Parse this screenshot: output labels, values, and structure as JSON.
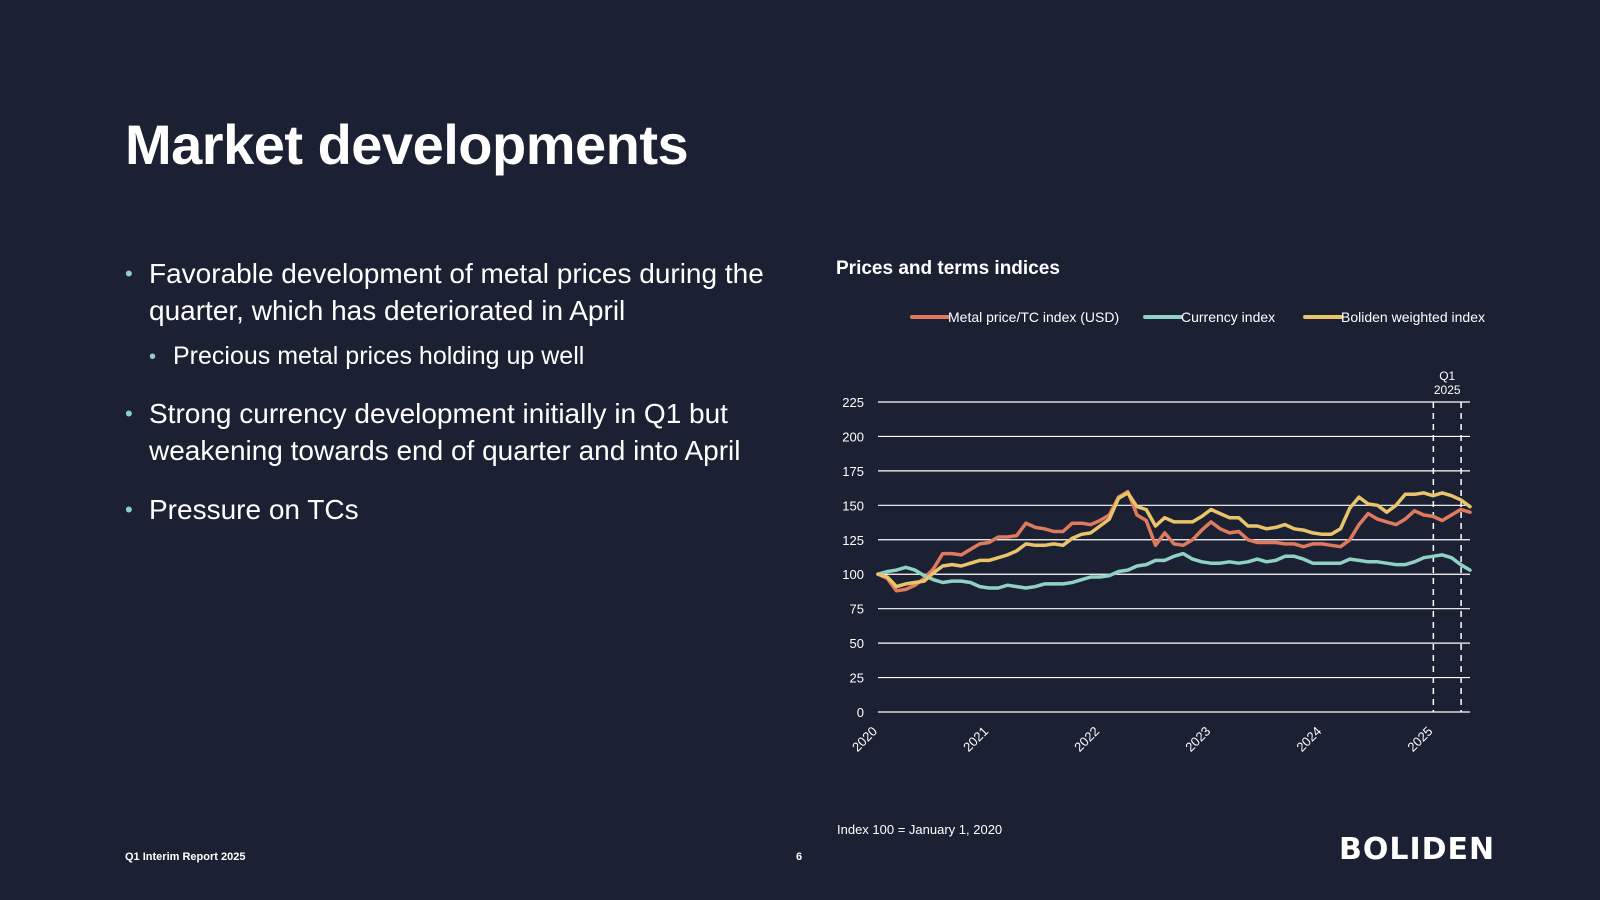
{
  "slide": {
    "title": "Market developments",
    "bullets": [
      {
        "text": "Favorable development of metal prices during the quarter, which has deteriorated in April",
        "sub": "Precious metal prices holding up well"
      },
      {
        "text": "Strong currency development initially in Q1 but weakening towards end of quarter and into April"
      },
      {
        "text": "Pressure on TCs"
      }
    ],
    "bullet_glyph": "•",
    "chart_title": "Prices and terms indices",
    "note": "Index 100 = January 1, 2020",
    "footer_report": "Q1 Interim Report 2025",
    "page_number": "6",
    "logo_text": "BOLIDEN"
  },
  "chart_data": {
    "type": "line",
    "title": "Prices and terms indices",
    "x_ticks": [
      "2020",
      "2021",
      "2022",
      "2023",
      "2024",
      "2025"
    ],
    "x_start": 2020,
    "x_end": 2025.33,
    "ylim": [
      0,
      225
    ],
    "y_ticks": [
      0,
      25,
      50,
      75,
      100,
      125,
      150,
      175,
      200,
      225
    ],
    "grid": true,
    "legend_position": "top",
    "annotation": {
      "label_line1": "Q1",
      "label_line2": "2025",
      "start": 2025.0,
      "end": 2025.25
    },
    "footnote": "Index 100 = January 1, 2020",
    "series": [
      {
        "name": "Metal price/TC index (USD)",
        "color": "#df7a5f",
        "values": [
          100,
          97,
          88,
          89,
          92,
          97,
          104,
          115,
          115,
          114,
          118,
          122,
          123,
          127,
          127,
          128,
          137,
          134,
          133,
          131,
          131,
          137,
          137,
          136,
          139,
          143,
          156,
          160,
          143,
          139,
          121,
          130,
          122,
          121,
          125,
          132,
          138,
          133,
          130,
          131,
          125,
          123,
          123,
          123,
          122,
          122,
          120,
          122,
          122,
          121,
          120,
          125,
          136,
          144,
          140,
          138,
          136,
          140,
          146,
          143,
          142,
          139,
          143,
          147,
          145
        ]
      },
      {
        "name": "Currency index",
        "color": "#8fd1c2",
        "values": [
          100,
          102,
          103,
          105,
          103,
          99,
          96,
          94,
          95,
          95,
          94,
          91,
          90,
          90,
          92,
          91,
          90,
          91,
          93,
          93,
          93,
          94,
          96,
          98,
          98,
          99,
          102,
          103,
          106,
          107,
          110,
          110,
          113,
          115,
          111,
          109,
          108,
          108,
          109,
          108,
          109,
          111,
          109,
          110,
          113,
          113,
          111,
          108,
          108,
          108,
          108,
          111,
          110,
          109,
          109,
          108,
          107,
          107,
          109,
          112,
          113,
          114,
          112,
          107,
          103
        ]
      },
      {
        "name": "Boliden weighted index",
        "color": "#e9c46a",
        "values": [
          100,
          98,
          91,
          93,
          94,
          95,
          101,
          106,
          107,
          106,
          108,
          110,
          110,
          112,
          114,
          117,
          122,
          121,
          121,
          122,
          121,
          126,
          129,
          130,
          135,
          140,
          155,
          159,
          149,
          147,
          135,
          141,
          138,
          138,
          138,
          142,
          147,
          144,
          141,
          141,
          135,
          135,
          133,
          134,
          136,
          133,
          132,
          130,
          129,
          129,
          133,
          148,
          156,
          151,
          150,
          145,
          150,
          158,
          158,
          159,
          157,
          159,
          157,
          154,
          149
        ]
      }
    ]
  }
}
